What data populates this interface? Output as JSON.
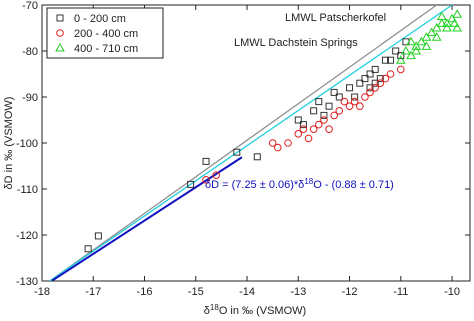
{
  "chart_data": {
    "type": "scatter",
    "xlabel": [
      "δ",
      "18",
      "O in ‰ (VSMOW)"
    ],
    "ylabel": "δD in ‰ (VSMOW)",
    "xlim": [
      -18,
      -9.65
    ],
    "ylim": [
      -130,
      -70
    ],
    "xticks": [
      -18,
      -17,
      -16,
      -15,
      -14,
      -13,
      -12,
      -11,
      -10
    ],
    "yticks": [
      -130,
      -120,
      -110,
      -100,
      -90,
      -80,
      -70
    ],
    "legend": "upper left",
    "series": [
      {
        "name": "0 - 200 cm",
        "color": "#333333",
        "marker": "square",
        "x": [
          -17.1,
          -16.9,
          -14.8,
          -13.8,
          -15.1,
          -14.2,
          -13,
          -12.9,
          -12.7,
          -12.5,
          -12.4,
          -12.2,
          -12,
          -11.9,
          -11.8,
          -11.7,
          -11.6,
          -11.5,
          -11.4,
          -11.3,
          -11.2,
          -11.1,
          -11,
          -10.9,
          -11.6,
          -12.3,
          -12.6,
          -11.5
        ],
        "values": [
          -123,
          -120.2,
          -104,
          -103,
          -109,
          -102,
          -95,
          -96,
          -93,
          -94,
          -92,
          -90,
          -88,
          -90,
          -87,
          -86,
          -85,
          -84,
          -86,
          -82,
          -82,
          -80,
          -81,
          -78,
          -88,
          -89,
          -91,
          -87
        ]
      },
      {
        "name": "200 - 400 cm",
        "color": "#e02020",
        "marker": "circle",
        "x": [
          -14.8,
          -14.6,
          -13.4,
          -13.2,
          -13,
          -12.8,
          -12.7,
          -12.6,
          -12.5,
          -12.3,
          -12.2,
          -12,
          -11.9,
          -11.8,
          -11.7,
          -11.6,
          -11.5,
          -11.4,
          -11.3,
          -11.2,
          -11,
          -12.4,
          -12.9,
          -13.5,
          -12.1
        ],
        "values": [
          -108,
          -107,
          -101,
          -100,
          -98,
          -99,
          -97,
          -96,
          -95,
          -94,
          -93,
          -92,
          -91,
          -92,
          -90,
          -89,
          -88,
          -87,
          -86,
          -85,
          -84,
          -97,
          -97,
          -100,
          -91
        ]
      },
      {
        "name": "400 - 710 cm",
        "color": "#20d020",
        "marker": "triangle",
        "x": [
          -11,
          -10.9,
          -10.8,
          -10.7,
          -10.6,
          -10.5,
          -10.4,
          -10.3,
          -10.2,
          -10.1,
          -10,
          -9.9,
          -10.5,
          -10.3,
          -10.1,
          -9.95,
          -10.7,
          -10.2,
          -10.8,
          -9.9
        ],
        "values": [
          -82,
          -80,
          -81,
          -79,
          -78,
          -77,
          -76,
          -75,
          -74,
          -74,
          -73,
          -72,
          -79,
          -77,
          -75,
          -74,
          -80,
          -72.5,
          -78,
          -75
        ]
      }
    ],
    "lines": [
      {
        "name": "LMWL Patscherkofel",
        "color": "#909090",
        "x": [
          -17.85,
          -10.3
        ],
        "values": [
          -130,
          -70
        ]
      },
      {
        "name": "LMWL Dachstein Springs",
        "color": "#20d0e0",
        "x": [
          -17.85,
          -10.0
        ],
        "values": [
          -130,
          -70
        ]
      },
      {
        "color": "#1010c0",
        "x": [
          -17.8,
          -14.1
        ],
        "values": [
          -129.9,
          -103.1
        ]
      }
    ],
    "annotation": [
      "δD = (7.25 ± 0.06)*δ",
      "18",
      "O - (0.88 ± 0.71)"
    ]
  }
}
